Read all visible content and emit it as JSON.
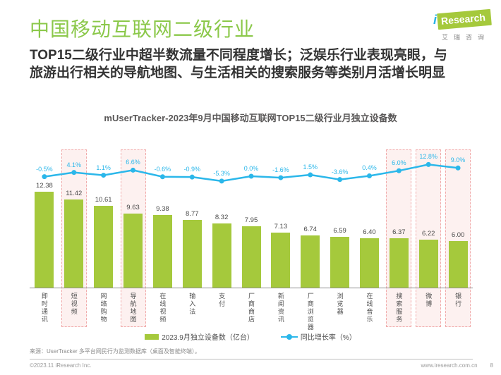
{
  "page": {
    "title": "中国移动互联网二级行业",
    "subtitle_line1": "TOP15二级行业中超半数流量不同程度增长；泛娱乐行业表现亮眼，与",
    "subtitle_line2": "旅游出行相关的导航地图、与生活相关的搜索服务等类别月活增长明显",
    "logo": {
      "i": "i",
      "research": "Research",
      "cn": "艾瑞咨询"
    },
    "footer": {
      "source": "来源：UserTracker 多平台网民行为监测数据库（桌面及智能终端）。",
      "copyright": "©2023.11 iResearch Inc.",
      "website": "www.iresearch.com.cn",
      "page_number": "8"
    }
  },
  "chart_data": {
    "type": "bar+line",
    "title": "mUserTracker-2023年9月中国移动互联网TOP15二级行业月独立设备数",
    "categories": [
      "即时通讯",
      "短视频",
      "网络购物",
      "导航地图",
      "在线视频",
      "输入法",
      "支付",
      "厂商商店",
      "新闻资讯",
      "厂商浏览器",
      "浏览器",
      "在线音乐",
      "搜索服务",
      "微博",
      "银行"
    ],
    "series": [
      {
        "name": "2023.9月独立设备数（亿台）",
        "type": "bar",
        "color": "#a5c93c",
        "values": [
          12.38,
          11.42,
          10.61,
          9.63,
          9.38,
          8.77,
          8.32,
          7.95,
          7.13,
          6.74,
          6.59,
          6.4,
          6.37,
          6.22,
          6.0
        ]
      },
      {
        "name": "同比增长率（%）",
        "type": "line",
        "color": "#2bb7ea",
        "values": [
          -0.5,
          4.1,
          1.1,
          6.6,
          -0.6,
          -0.9,
          -5.3,
          0.0,
          -1.6,
          1.5,
          -3.6,
          0.4,
          6.0,
          12.8,
          9.0
        ]
      }
    ],
    "highlighted_categories": [
      "短视频",
      "导航地图",
      "搜索服务",
      "微博",
      "银行"
    ],
    "highlight_style": {
      "fill": "#fdf1f0",
      "border": "#f1aaaa"
    },
    "legend_position": "bottom",
    "axes_hidden": true,
    "bar_value_decimals": 2,
    "line_value_decimals": 1
  }
}
